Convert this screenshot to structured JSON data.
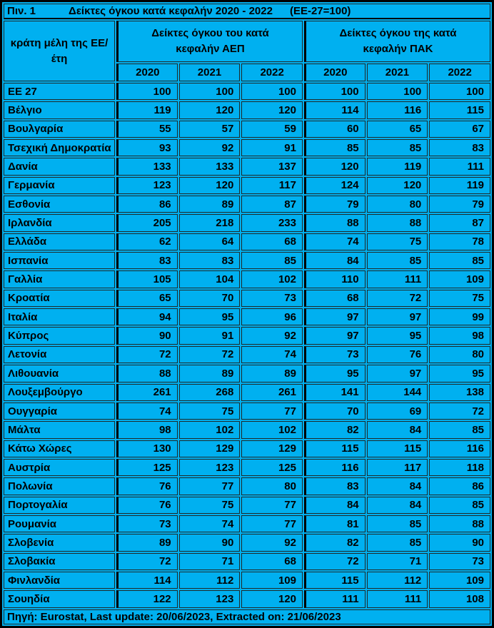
{
  "header": {
    "tag": "Πιν. 1",
    "title": "Δείκτες όγκου κατά κεφαλήν 2020 - 2022",
    "note": "(ΕΕ-27=100)"
  },
  "footer": {
    "text": "Πηγή: Eurostat, Last update: 20/06/2023, Extracted on:  21/06/2023"
  },
  "colors": {
    "fill": "#00b0f0",
    "border_thin": "#1f2a2a",
    "border_thick": "#000000",
    "text": "#000000"
  },
  "chart_data": {
    "type": "table",
    "title": "Δείκτες όγκου κατά κεφαλήν 2020 - 2022 (ΕΕ-27=100)",
    "row_header": "κράτη μέλη της ΕΕ/ έτη",
    "column_groups": [
      {
        "label": "Δείκτες όγκου του κατά κεφαλήν ΑΕΠ",
        "years": [
          "2020",
          "2021",
          "2022"
        ]
      },
      {
        "label": "Δείκτες όγκου της κατά κεφαλήν ΠΑΚ",
        "years": [
          "2020",
          "2021",
          "2022"
        ]
      }
    ],
    "rows": [
      {
        "country": "ΕΕ 27",
        "gdp": [
          100,
          100,
          100
        ],
        "aic": [
          100,
          100,
          100
        ]
      },
      {
        "country": "Βέλγιο",
        "gdp": [
          119,
          120,
          120
        ],
        "aic": [
          114,
          116,
          115
        ]
      },
      {
        "country": "Βουλγαρία",
        "gdp": [
          55,
          57,
          59
        ],
        "aic": [
          60,
          65,
          67
        ]
      },
      {
        "country": "Τσεχική Δημοκρατία",
        "gdp": [
          93,
          92,
          91
        ],
        "aic": [
          85,
          85,
          83
        ]
      },
      {
        "country": "Δανία",
        "gdp": [
          133,
          133,
          137
        ],
        "aic": [
          120,
          119,
          111
        ]
      },
      {
        "country": "Γερμανία",
        "gdp": [
          123,
          120,
          117
        ],
        "aic": [
          124,
          120,
          119
        ]
      },
      {
        "country": "Εσθονία",
        "gdp": [
          86,
          89,
          87
        ],
        "aic": [
          79,
          80,
          79
        ]
      },
      {
        "country": "Ιρλανδία",
        "gdp": [
          205,
          218,
          233
        ],
        "aic": [
          88,
          88,
          87
        ]
      },
      {
        "country": "Ελλάδα",
        "gdp": [
          62,
          64,
          68
        ],
        "aic": [
          74,
          75,
          78
        ]
      },
      {
        "country": "Ισπανία",
        "gdp": [
          83,
          83,
          85
        ],
        "aic": [
          84,
          85,
          85
        ]
      },
      {
        "country": "Γαλλία",
        "gdp": [
          105,
          104,
          102
        ],
        "aic": [
          110,
          111,
          109
        ]
      },
      {
        "country": "Κροατία",
        "gdp": [
          65,
          70,
          73
        ],
        "aic": [
          68,
          72,
          75
        ]
      },
      {
        "country": "Ιταλία",
        "gdp": [
          94,
          95,
          96
        ],
        "aic": [
          97,
          97,
          99
        ]
      },
      {
        "country": "Κύπρος",
        "gdp": [
          90,
          91,
          92
        ],
        "aic": [
          97,
          95,
          98
        ]
      },
      {
        "country": "Λετονία",
        "gdp": [
          72,
          72,
          74
        ],
        "aic": [
          73,
          76,
          80
        ]
      },
      {
        "country": "Λιθουανία",
        "gdp": [
          88,
          89,
          89
        ],
        "aic": [
          95,
          97,
          95
        ]
      },
      {
        "country": "Λουξεμβούργο",
        "gdp": [
          261,
          268,
          261
        ],
        "aic": [
          141,
          144,
          138
        ]
      },
      {
        "country": "Ουγγαρία",
        "gdp": [
          74,
          75,
          77
        ],
        "aic": [
          70,
          69,
          72
        ]
      },
      {
        "country": "Μάλτα",
        "gdp": [
          98,
          102,
          102
        ],
        "aic": [
          82,
          84,
          85
        ]
      },
      {
        "country": "Κάτω Χώρες",
        "gdp": [
          130,
          129,
          129
        ],
        "aic": [
          115,
          115,
          116
        ]
      },
      {
        "country": "Αυστρία",
        "gdp": [
          125,
          123,
          125
        ],
        "aic": [
          116,
          117,
          118
        ]
      },
      {
        "country": "Πολωνία",
        "gdp": [
          76,
          77,
          80
        ],
        "aic": [
          83,
          84,
          86
        ]
      },
      {
        "country": "Πορτογαλία",
        "gdp": [
          76,
          75,
          77
        ],
        "aic": [
          84,
          84,
          85
        ]
      },
      {
        "country": "Ρουμανία",
        "gdp": [
          73,
          74,
          77
        ],
        "aic": [
          81,
          85,
          88
        ]
      },
      {
        "country": "Σλοβενία",
        "gdp": [
          89,
          90,
          92
        ],
        "aic": [
          82,
          85,
          90
        ]
      },
      {
        "country": "Σλοβακία",
        "gdp": [
          72,
          71,
          68
        ],
        "aic": [
          72,
          71,
          73
        ]
      },
      {
        "country": "Φινλανδία",
        "gdp": [
          114,
          112,
          109
        ],
        "aic": [
          115,
          112,
          109
        ]
      },
      {
        "country": "Σουηδία",
        "gdp": [
          122,
          123,
          120
        ],
        "aic": [
          111,
          111,
          108
        ]
      }
    ]
  }
}
